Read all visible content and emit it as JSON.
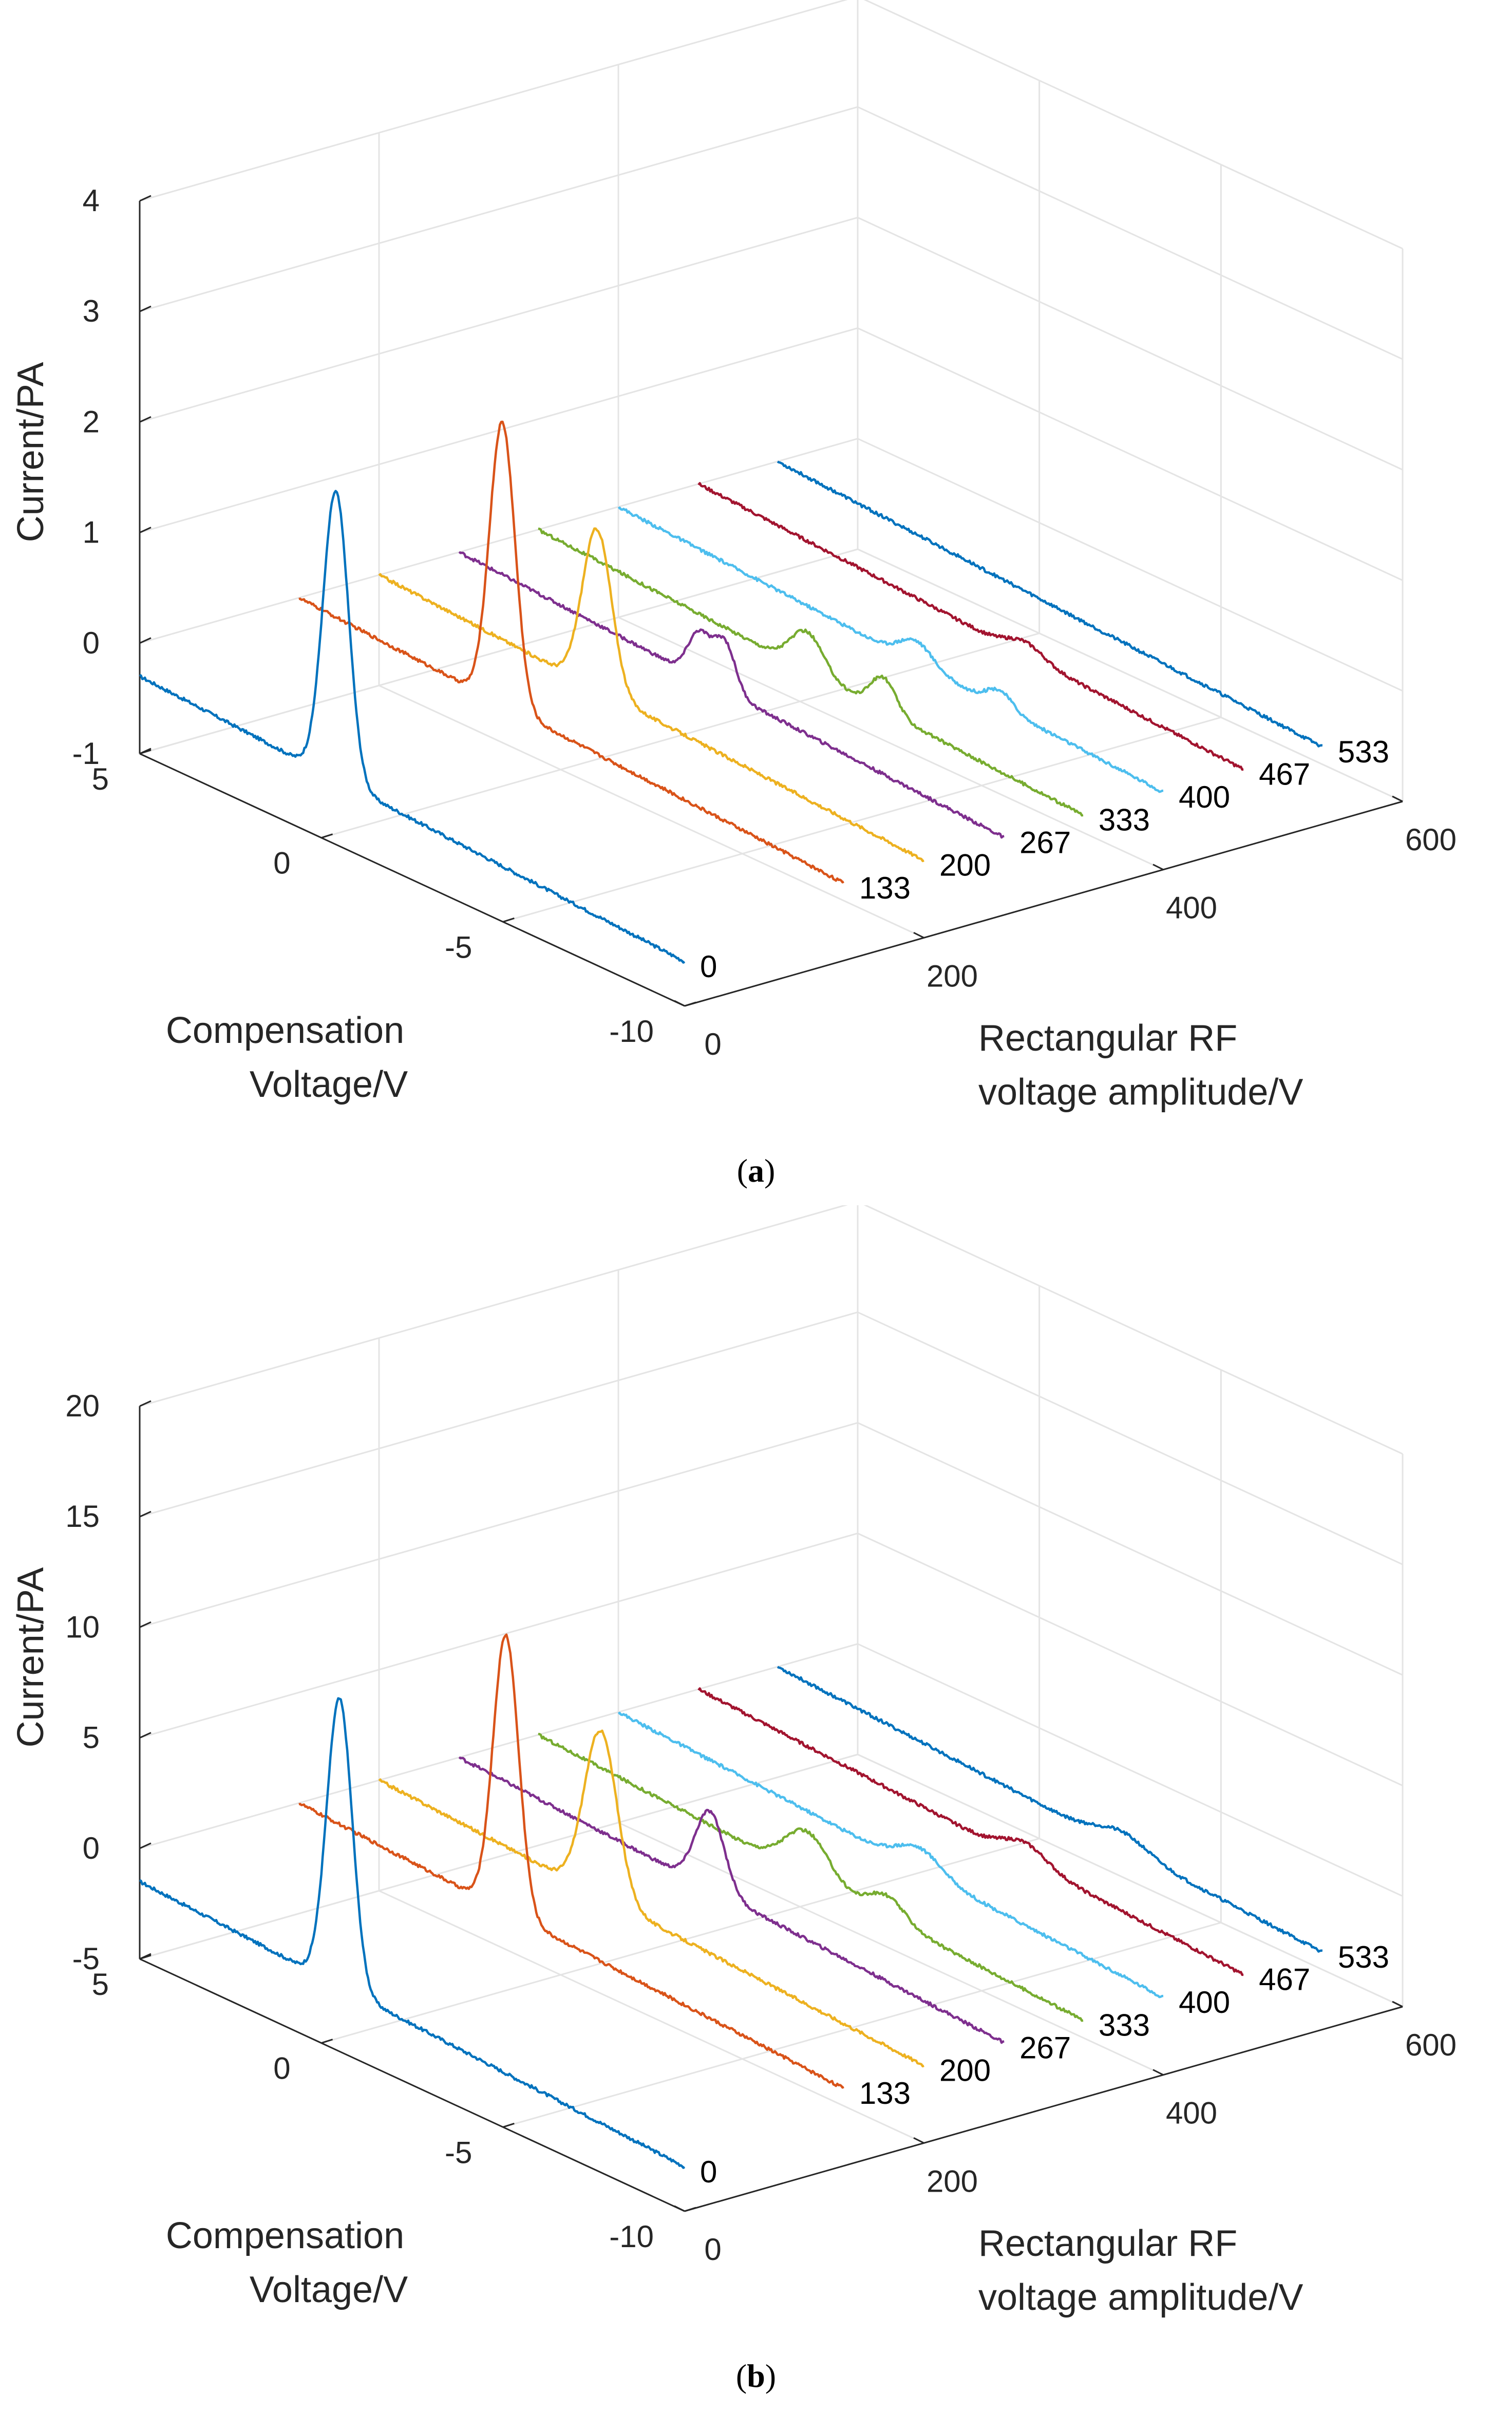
{
  "chart_data": [
    {
      "type": "line3d",
      "panel": "a",
      "caption_open": "(",
      "caption_letter": "a",
      "caption_close": ")",
      "zlabel": "Current/PA",
      "xlabel_line1": "Compensation",
      "xlabel_line2": "Voltage/V",
      "ylabel_line1": "Rectangular RF",
      "ylabel_line2": "voltage amplitude/V",
      "x_ticks": [
        "5",
        "0",
        "-5",
        "-10"
      ],
      "x_tick_values": [
        5,
        0,
        -5,
        -10
      ],
      "xlim": [
        -10,
        5
      ],
      "y_ticks": [
        "0",
        "200",
        "400",
        "600"
      ],
      "y_tick_values": [
        0,
        200,
        400,
        600
      ],
      "ylim": [
        0,
        600
      ],
      "z_ticks": [
        "4",
        "3",
        "2",
        "1",
        "0",
        "-1"
      ],
      "z_tick_values": [
        4,
        3,
        2,
        1,
        0,
        -1
      ],
      "zlim": [
        -1,
        4
      ],
      "grid": true,
      "series": [
        {
          "name": "0",
          "rf_amplitude": 0,
          "color": "#0072BD",
          "baseline": -0.3,
          "baseline_slope": 0.02,
          "peaks": [
            {
              "cv": -0.4,
              "height": 2.6,
              "width": 0.35
            }
          ]
        },
        {
          "name": "133",
          "rf_amplitude": 133,
          "color": "#D95319",
          "baseline": 0.0,
          "baseline_slope": 0.02,
          "peaks": [
            {
              "cv": -0.6,
              "height": 2.55,
              "width": 0.35
            }
          ]
        },
        {
          "name": "200",
          "rf_amplitude": 200,
          "color": "#EDB120",
          "baseline": 0.0,
          "baseline_slope": 0.02,
          "peaks": [
            {
              "cv": -1.0,
              "height": 1.45,
              "width": 0.4
            }
          ]
        },
        {
          "name": "267",
          "rf_amplitude": 267,
          "color": "#7E2F8E",
          "baseline": 0.0,
          "baseline_slope": 0.02,
          "peaks": [
            {
              "cv": -1.6,
              "height": 0.4,
              "width": 0.3
            },
            {
              "cv": -2.3,
              "height": 0.45,
              "width": 0.3
            }
          ]
        },
        {
          "name": "333",
          "rf_amplitude": 333,
          "color": "#77AC30",
          "baseline": 0.0,
          "baseline_slope": 0.02,
          "peaks": [
            {
              "cv": -2.4,
              "height": 0.35,
              "width": 0.45
            },
            {
              "cv": -4.5,
              "height": 0.3,
              "width": 0.35
            }
          ]
        },
        {
          "name": "400",
          "rf_amplitude": 400,
          "color": "#4DBEEE",
          "baseline": 0.0,
          "baseline_slope": 0.02,
          "peaks": [
            {
              "cv": -3.2,
              "height": 0.2,
              "width": 0.45
            },
            {
              "cv": -5.5,
              "height": 0.15,
              "width": 0.35
            }
          ]
        },
        {
          "name": "467",
          "rf_amplitude": 467,
          "color": "#A2142F",
          "baseline": 0.0,
          "baseline_slope": 0.02,
          "peaks": [
            {
              "cv": -4.0,
              "height": 0.12,
              "width": 0.5
            }
          ]
        },
        {
          "name": "533",
          "rf_amplitude": 533,
          "color": "#0072BD",
          "baseline": 0.0,
          "baseline_slope": 0.02,
          "peaks": []
        }
      ]
    },
    {
      "type": "line3d",
      "panel": "b",
      "caption_open": "(",
      "caption_letter": "b",
      "caption_close": ")",
      "zlabel": "Current/PA",
      "xlabel_line1": "Compensation",
      "xlabel_line2": "Voltage/V",
      "ylabel_line1": "Rectangular RF",
      "ylabel_line2": "voltage amplitude/V",
      "x_ticks": [
        "5",
        "0",
        "-5",
        "-10"
      ],
      "x_tick_values": [
        5,
        0,
        -5,
        -10
      ],
      "xlim": [
        -10,
        5
      ],
      "y_ticks": [
        "0",
        "200",
        "400",
        "600"
      ],
      "y_tick_values": [
        0,
        200,
        400,
        600
      ],
      "ylim": [
        0,
        600
      ],
      "z_ticks": [
        "20",
        "15",
        "10",
        "5",
        "0",
        "-5"
      ],
      "z_tick_values": [
        20,
        15,
        10,
        5,
        0,
        -5
      ],
      "zlim": [
        -5,
        20
      ],
      "grid": true,
      "series": [
        {
          "name": "0",
          "rf_amplitude": 0,
          "color": "#0072BD",
          "baseline": -1.5,
          "baseline_slope": 0.1,
          "peaks": [
            {
              "cv": -0.5,
              "height": 13.0,
              "width": 0.35
            }
          ]
        },
        {
          "name": "133",
          "rf_amplitude": 133,
          "color": "#D95319",
          "baseline": 0.0,
          "baseline_slope": 0.1,
          "peaks": [
            {
              "cv": -0.7,
              "height": 12.5,
              "width": 0.35
            }
          ]
        },
        {
          "name": "200",
          "rf_amplitude": 200,
          "color": "#EDB120",
          "baseline": 0.0,
          "baseline_slope": 0.1,
          "peaks": [
            {
              "cv": -1.1,
              "height": 7.5,
              "width": 0.45
            }
          ]
        },
        {
          "name": "267",
          "rf_amplitude": 267,
          "color": "#7E2F8E",
          "baseline": 0.0,
          "baseline_slope": 0.1,
          "peaks": [
            {
              "cv": -1.9,
              "height": 3.5,
              "width": 0.4
            }
          ]
        },
        {
          "name": "333",
          "rf_amplitude": 333,
          "color": "#77AC30",
          "baseline": 0.0,
          "baseline_slope": 0.1,
          "peaks": [
            {
              "cv": -2.4,
              "height": 2.0,
              "width": 0.6
            },
            {
              "cv": -4.6,
              "height": 1.0,
              "width": 0.5
            }
          ]
        },
        {
          "name": "400",
          "rf_amplitude": 400,
          "color": "#4DBEEE",
          "baseline": 0.0,
          "baseline_slope": 0.1,
          "peaks": [
            {
              "cv": -3.3,
              "height": 1.0,
              "width": 0.6
            }
          ]
        },
        {
          "name": "467",
          "rf_amplitude": 467,
          "color": "#A2142F",
          "baseline": 0.0,
          "baseline_slope": 0.1,
          "peaks": [
            {
              "cv": -4.0,
              "height": 0.8,
              "width": 0.6
            }
          ]
        },
        {
          "name": "533",
          "rf_amplitude": 533,
          "color": "#0072BD",
          "baseline": 0.0,
          "baseline_slope": 0.1,
          "peaks": [
            {
              "cv": -4.5,
              "height": 0.7,
              "width": 0.7
            }
          ]
        }
      ]
    }
  ]
}
